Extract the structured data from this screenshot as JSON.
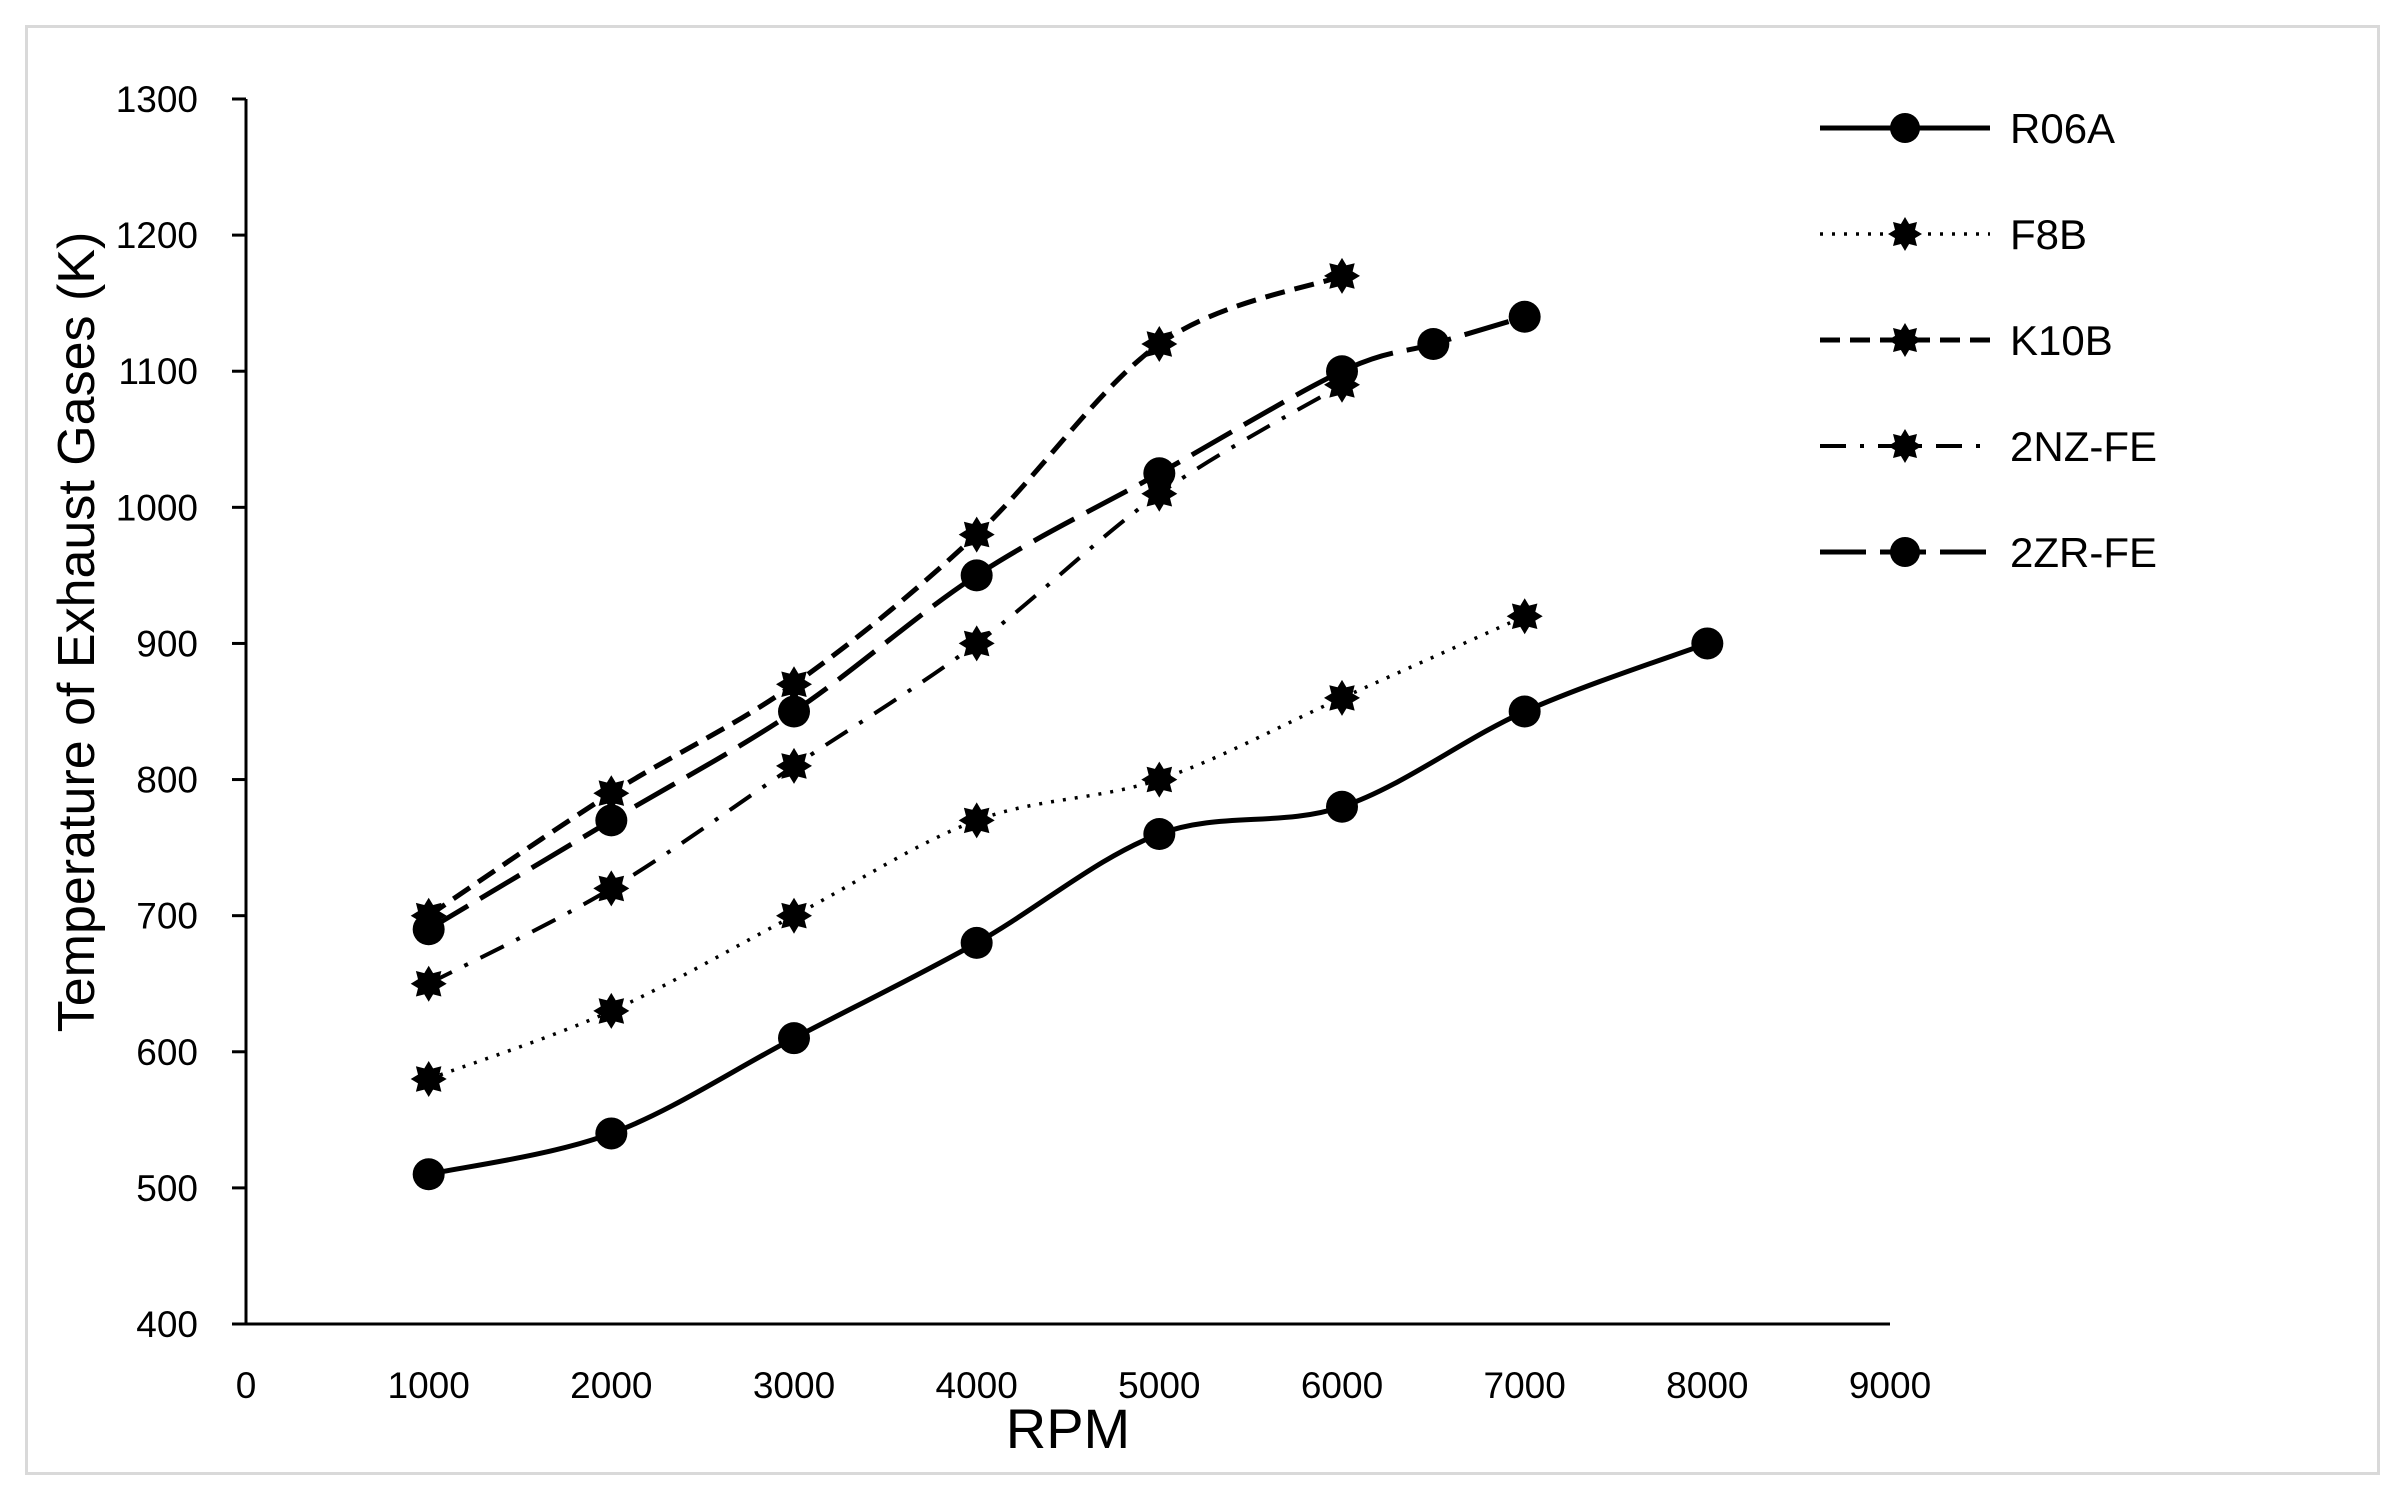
{
  "chart_data": {
    "type": "line",
    "xlabel": "RPM",
    "ylabel": "Temperature of Exhaust Gases (K)",
    "xlim": [
      0,
      9000
    ],
    "ylim": [
      400,
      1300
    ],
    "x_ticks": [
      0,
      1000,
      2000,
      3000,
      4000,
      5000,
      6000,
      7000,
      8000,
      9000
    ],
    "y_ticks": [
      400,
      500,
      600,
      700,
      800,
      900,
      1000,
      1100,
      1200,
      1300
    ],
    "grid": false,
    "legend_position": "right",
    "series": [
      {
        "name": "R06A",
        "line_style": "solid",
        "color": "#000000",
        "x": [
          1000,
          2000,
          3000,
          4000,
          5000,
          6000,
          7000,
          8000
        ],
        "y": [
          510,
          540,
          610,
          680,
          760,
          780,
          850,
          900
        ]
      },
      {
        "name": "F8B",
        "line_style": "dotted",
        "color": "#000000",
        "x": [
          1000,
          2000,
          3000,
          4000,
          5000,
          6000,
          7000
        ],
        "y": [
          580,
          630,
          700,
          770,
          800,
          860,
          920
        ]
      },
      {
        "name": "K10B",
        "line_style": "dashed",
        "color": "#000000",
        "x": [
          1000,
          2000,
          3000,
          4000,
          5000,
          6000
        ],
        "y": [
          700,
          790,
          870,
          980,
          1120,
          1170
        ]
      },
      {
        "name": "2NZ-FE",
        "line_style": "dash-dot",
        "color": "#000000",
        "x": [
          1000,
          2000,
          3000,
          4000,
          5000,
          6000
        ],
        "y": [
          650,
          720,
          810,
          900,
          1010,
          1090
        ]
      },
      {
        "name": "2ZR-FE",
        "line_style": "long-dash",
        "color": "#000000",
        "x": [
          1000,
          2000,
          3000,
          4000,
          5000,
          6000,
          6500,
          7000
        ],
        "y": [
          690,
          770,
          850,
          950,
          1025,
          1100,
          1120,
          1140
        ]
      }
    ]
  }
}
